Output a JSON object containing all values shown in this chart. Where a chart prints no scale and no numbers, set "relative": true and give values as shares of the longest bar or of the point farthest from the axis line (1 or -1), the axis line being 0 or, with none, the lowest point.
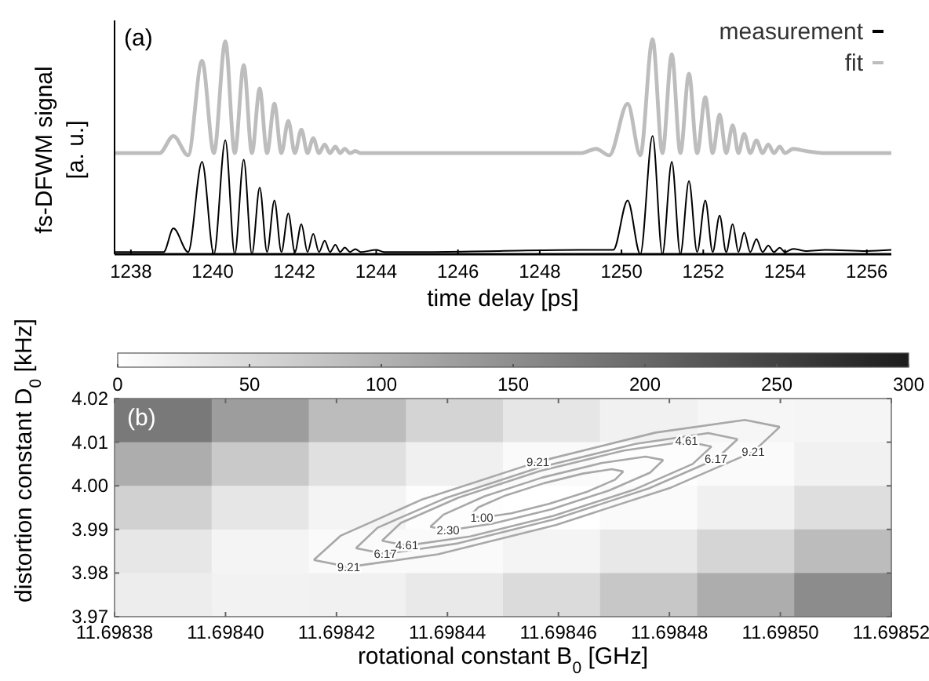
{
  "chart_data": [
    {
      "type": "line",
      "relative": true,
      "xlabel": "time delay [ps]",
      "ylabel": "fs-DFWM signal\n[a. u.]",
      "xlim": [
        1237.6,
        1256.6
      ],
      "xticks": [
        1238,
        1240,
        1242,
        1244,
        1246,
        1248,
        1250,
        1252,
        1254,
        1256
      ],
      "legend": "top right",
      "annotations": [
        "(a)"
      ],
      "series": [
        {
          "name": "measurement",
          "color": "#000000",
          "x": [
            1237.6,
            1238.8,
            1239.04,
            1239.4,
            1239.74,
            1240.03,
            1240.31,
            1240.54,
            1240.76,
            1240.96,
            1241.15,
            1241.33,
            1241.51,
            1241.68,
            1241.85,
            1242.01,
            1242.17,
            1242.32,
            1242.46,
            1242.6,
            1242.74,
            1242.87,
            1243.0,
            1243.12,
            1243.23,
            1243.36,
            1243.49,
            1243.62,
            1244.0,
            1244.2,
            1245,
            1247,
            1249,
            1249.8,
            1250.15,
            1250.46,
            1250.76,
            1251.0,
            1251.23,
            1251.44,
            1251.65,
            1251.85,
            1252.05,
            1252.23,
            1252.4,
            1252.56,
            1252.72,
            1252.86,
            1253.0,
            1253.15,
            1253.3,
            1253.45,
            1253.59,
            1253.73,
            1253.87,
            1254.0,
            1254.2,
            1254.5,
            1255,
            1256,
            1256.6
          ],
          "values": [
            0.01,
            0.01,
            0.12,
            0.01,
            0.43,
            0.0,
            0.53,
            0.0,
            0.44,
            0.0,
            0.31,
            0.01,
            0.25,
            0.01,
            0.19,
            0.01,
            0.14,
            0.01,
            0.095,
            0.01,
            0.063,
            0.01,
            0.044,
            0.01,
            0.031,
            0.01,
            0.024,
            0.01,
            0.02,
            0.01,
            0.01,
            0.015,
            0.02,
            0.02,
            0.25,
            0.0,
            0.55,
            0.0,
            0.43,
            0.0,
            0.34,
            0.01,
            0.25,
            0.01,
            0.18,
            0.01,
            0.14,
            0.01,
            0.1,
            0.01,
            0.07,
            0.01,
            0.04,
            0.01,
            0.03,
            0.01,
            0.025,
            0.015,
            0.02,
            0.015,
            0.02
          ]
        },
        {
          "name": "fit",
          "color": "#bdbdbd",
          "x": [
            1237.6,
            1238.7,
            1239.04,
            1239.4,
            1239.74,
            1240.03,
            1240.31,
            1240.54,
            1240.76,
            1240.96,
            1241.15,
            1241.33,
            1241.51,
            1241.68,
            1241.85,
            1242.01,
            1242.17,
            1242.32,
            1242.46,
            1242.6,
            1242.74,
            1242.87,
            1243.0,
            1243.12,
            1243.23,
            1243.36,
            1243.49,
            1243.62,
            1245,
            1249,
            1249.38,
            1249.7,
            1250.15,
            1250.46,
            1250.76,
            1251.0,
            1251.23,
            1251.44,
            1251.65,
            1251.85,
            1252.05,
            1252.23,
            1252.4,
            1252.56,
            1252.72,
            1252.86,
            1253.0,
            1253.15,
            1253.3,
            1253.45,
            1253.59,
            1253.73,
            1253.87,
            1254.0,
            1254.2,
            1254.5,
            1255,
            1256.6
          ],
          "values": [
            0.47,
            0.47,
            0.55,
            0.46,
            0.9,
            0.47,
            0.99,
            0.47,
            0.88,
            0.47,
            0.77,
            0.47,
            0.7,
            0.47,
            0.62,
            0.47,
            0.58,
            0.47,
            0.54,
            0.47,
            0.51,
            0.47,
            0.5,
            0.47,
            0.49,
            0.47,
            0.48,
            0.47,
            0.47,
            0.47,
            0.49,
            0.46,
            0.7,
            0.46,
            1.0,
            0.47,
            0.93,
            0.47,
            0.84,
            0.47,
            0.73,
            0.47,
            0.65,
            0.47,
            0.6,
            0.47,
            0.56,
            0.47,
            0.53,
            0.47,
            0.51,
            0.47,
            0.5,
            0.47,
            0.49,
            0.48,
            0.47,
            0.47
          ]
        }
      ]
    },
    {
      "type": "heatmap",
      "xlabel": "rotational constant B$_{0}$ [GHz]",
      "ylabel": "distortion constant D$_{0}$ [kHz]",
      "xlim": [
        11.69838,
        11.69852
      ],
      "ylim": [
        3.97,
        4.02
      ],
      "xticks": [
        11.69838,
        {
          "value": 11.6984,
          "label": "11.69840"
        },
        11.69842,
        11.69844,
        11.69846,
        11.69848,
        {
          "value": 11.6985,
          "label": "11.69850"
        },
        11.69852
      ],
      "yticks": [
        3.97,
        3.98,
        3.99,
        {
          "value": 4.0,
          "label": "4.00"
        },
        4.01,
        4.02
      ],
      "clim": [
        0,
        300
      ],
      "cticks": [
        0,
        50,
        100,
        150,
        200,
        250,
        300
      ],
      "cells": [
        [
          177,
          129,
          88,
          57,
          33,
          18,
          12,
          13
        ],
        [
          109,
          71,
          41,
          20,
          7,
          2,
          6,
          18
        ],
        [
          61,
          33,
          14,
          3,
          0,
          6,
          20,
          43
        ],
        [
          32,
          15,
          6,
          6,
          14,
          30,
          55,
          88
        ],
        [
          24,
          17,
          19,
          29,
          47,
          74,
          109,
          152
        ]
      ],
      "series": [
        {
          "type": "line",
          "color": "#a8a8a8",
          "x": [
            11.6984441,
            11.6984462,
            11.6984515,
            11.6984584,
            11.6984653,
            11.6984702,
            11.6984717
          ],
          "values": [
            3.9932,
            3.9927,
            3.9937,
            3.9959,
            3.9987,
            4.0014,
            4.0033
          ]
        },
        {
          "type": "line",
          "color": "#a8a8a8",
          "x": [
            11.6984441,
            11.6984456,
            11.6984505,
            11.6984574,
            11.6984644,
            11.6984696,
            11.6984717
          ],
          "values": [
            3.9932,
            3.9951,
            3.9978,
            4.0006,
            4.0028,
            4.0038,
            4.0033
          ]
        },
        {
          "type": "line",
          "color": "#a8a8a8",
          "x": [
            11.6984369,
            11.6984401,
            11.6984481,
            11.6984587,
            11.6984691,
            11.6984765,
            11.6984789
          ],
          "values": [
            3.9906,
            3.9898,
            3.9913,
            3.9946,
            3.9989,
            4.003,
            4.0059
          ]
        },
        {
          "type": "line",
          "color": "#a8a8a8",
          "x": [
            11.6984369,
            11.6984393,
            11.6984467,
            11.6984571,
            11.6984677,
            11.6984757,
            11.6984789
          ],
          "values": [
            3.9906,
            3.9934,
            3.9976,
            4.0019,
            4.0052,
            4.0067,
            4.0059
          ]
        },
        {
          "type": "line",
          "color": "#a8a8a8",
          "x": [
            11.6984282,
            11.6984327,
            11.6984441,
            11.6984591,
            11.6984738,
            11.6984842,
            11.6984876
          ],
          "values": [
            3.9874,
            3.9863,
            3.9884,
            3.9931,
            3.9992,
            4.005,
            4.009
          ]
        },
        {
          "type": "line",
          "color": "#a8a8a8",
          "x": [
            11.6984282,
            11.6984316,
            11.698442,
            11.6984567,
            11.6984718,
            11.6984831,
            11.6984876
          ],
          "values": [
            3.9874,
            3.9915,
            3.9973,
            4.0034,
            4.0081,
            4.0102,
            4.009
          ]
        },
        {
          "type": "line",
          "color": "#a8a8a8",
          "x": [
            11.6984235,
            11.6984288,
            11.6984419,
            11.6984592,
            11.6984763,
            11.6984884,
            11.6984923
          ],
          "values": [
            3.9857,
            3.9844,
            3.9868,
            3.9923,
            3.9994,
            4.0061,
            4.0107
          ]
        },
        {
          "type": "line",
          "color": "#a8a8a8",
          "x": [
            11.6984235,
            11.6984274,
            11.6984395,
            11.6984566,
            11.6984739,
            11.698487,
            11.6984923
          ],
          "values": [
            3.9857,
            3.9904,
            3.9971,
            4.0042,
            4.0096,
            4.0121,
            4.0107
          ]
        },
        {
          "type": "line",
          "color": "#a8a8a8",
          "x": [
            11.6984159,
            11.6984222,
            11.6984383,
            11.6984595,
            11.6984803,
            11.6984951,
            11.6984999
          ],
          "values": [
            3.983,
            3.9814,
            3.9843,
            3.991,
            3.9996,
            4.0078,
            4.0135
          ]
        },
        {
          "type": "line",
          "color": "#a8a8a8",
          "x": [
            11.6984159,
            11.6984208,
            11.6984355,
            11.6984563,
            11.6984775,
            11.6984936,
            11.6984999
          ],
          "values": [
            3.983,
            3.9886,
            3.9969,
            4.0055,
            4.0122,
            4.0151,
            4.0135
          ]
        }
      ],
      "annotations": [
        "(b)",
        {
          "text": "1.00",
          "x": 11.6984462,
          "y": 3.9927
        },
        {
          "text": "2.30",
          "x": 11.6984401,
          "y": 3.9898
        },
        {
          "text": "4.61",
          "x": 11.6984327,
          "y": 3.9863
        },
        {
          "text": "6.17",
          "x": 11.6984288,
          "y": 3.9844
        },
        {
          "text": "9.21",
          "x": 11.6984222,
          "y": 3.9814
        },
        {
          "text": "9.21",
          "x": 11.6984563,
          "y": 4.0055
        },
        {
          "text": "4.61",
          "x": 11.6984831,
          "y": 4.0102
        },
        {
          "text": "6.17",
          "x": 11.6984884,
          "y": 4.0061
        },
        {
          "text": "9.21",
          "x": 11.6984951,
          "y": 4.0078
        }
      ]
    }
  ]
}
